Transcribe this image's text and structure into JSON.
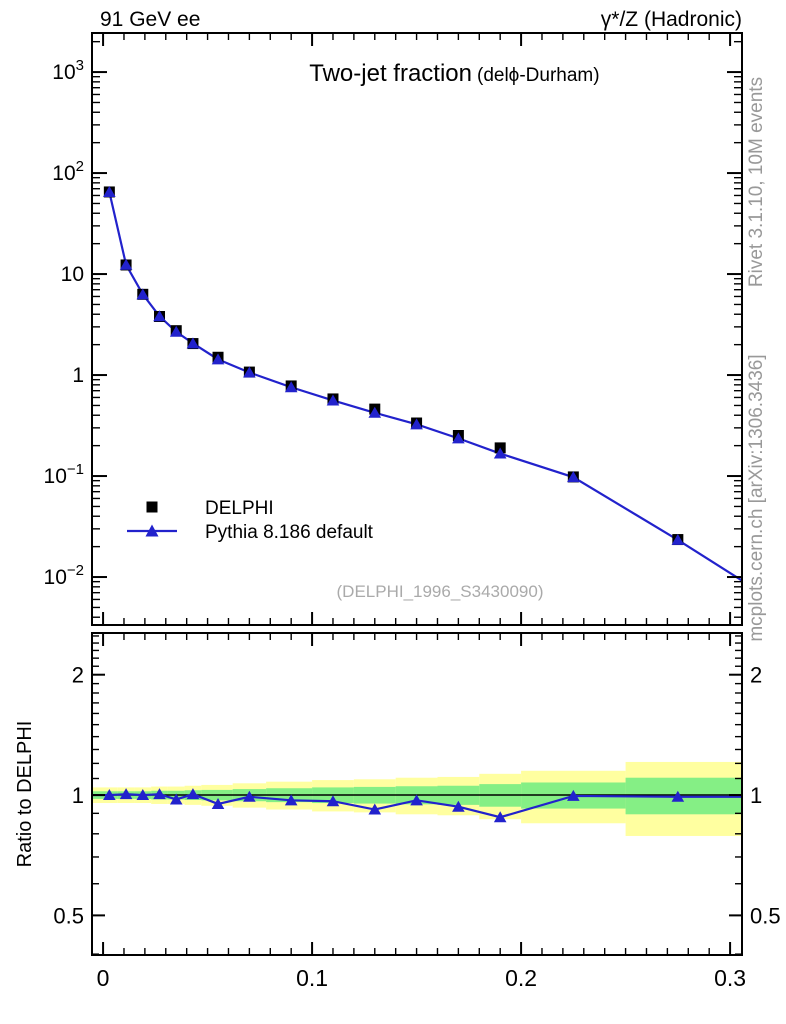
{
  "header": {
    "left": "91 GeV ee",
    "right": "γ*/Z (Hadronic)"
  },
  "title": {
    "main": "Two-jet fraction",
    "sub": "(delϕ-Durham)"
  },
  "watermark": "(DELPHI_1996_S3430090)",
  "side_notes": {
    "top": "Rivet 3.1.10,  10M events",
    "bottom": "mcplots.cern.ch [arXiv:1306.3436]"
  },
  "legend": {
    "items": [
      {
        "label": "DELPHI",
        "marker": "black-square"
      },
      {
        "label": "Pythia 8.186 default",
        "marker": "blue-line-triangle"
      }
    ]
  },
  "colors": {
    "mc_blue": "#2222cc",
    "data_black": "#000000",
    "band_green": "#85ef85",
    "band_yellow": "#ffffa0",
    "gray_note": "#999999",
    "watermark_gray": "#aaaaaa"
  },
  "chart_data": [
    {
      "type": "line",
      "title": "Two-jet fraction (delϕ-Durham)",
      "xlabel": "",
      "ylabel": "",
      "yscale": "log",
      "xlim": [
        -0.0053,
        0.3057
      ],
      "ylim": [
        0.00335,
        2437
      ],
      "x_ticks": {
        "values": [
          0,
          0.1,
          0.2,
          0.3
        ],
        "labels": [
          "0",
          "0.1",
          "0.2",
          "0.3"
        ],
        "minor_step": 0.01
      },
      "y_ticks": {
        "values": [
          1000,
          100,
          10,
          1,
          0.1,
          0.01
        ]
      },
      "x": [
        0.003,
        0.011,
        0.019,
        0.027,
        0.035,
        0.043,
        0.055,
        0.07,
        0.09,
        0.11,
        0.13,
        0.15,
        0.17,
        0.19,
        0.225,
        0.275
      ],
      "series": [
        {
          "name": "DELPHI",
          "marker": "square",
          "color": "#000000",
          "line": false,
          "values": [
            65,
            12.3,
            6.3,
            3.8,
            2.75,
            2.05,
            1.5,
            1.07,
            0.78,
            0.58,
            0.46,
            0.335,
            0.252,
            0.19,
            0.098,
            0.0235
          ]
        },
        {
          "name": "Pythia 8.186 default",
          "marker": "triangle",
          "color": "#2222cc",
          "line": true,
          "values": [
            65.0,
            12.36,
            6.3,
            3.82,
            2.68,
            2.06,
            1.43,
            1.06,
            0.757,
            0.56,
            0.423,
            0.325,
            0.236,
            0.167,
            0.0975,
            0.0233
          ],
          "extend_right": [
            0.32,
            0.006
          ]
        }
      ]
    },
    {
      "type": "ratio",
      "ylabel": "Ratio to DELPHI",
      "yscale": "log",
      "xlim": [
        -0.0053,
        0.3057
      ],
      "ylim": [
        0.398,
        2.543
      ],
      "x_ticks": {
        "values": [
          0,
          0.1,
          0.2,
          0.3
        ],
        "labels": [
          "0",
          "0.1",
          "0.2",
          "0.3"
        ],
        "minor_step": 0.01
      },
      "y_ticks": {
        "values": [
          2,
          1,
          0.5
        ],
        "labels": [
          "2",
          "1",
          "0.5"
        ],
        "minors": [
          0.4,
          0.6,
          0.7,
          0.8,
          0.9,
          1.1,
          1.2,
          1.3,
          1.4,
          1.5,
          1.6,
          1.7,
          1.8,
          1.9,
          2.1,
          2.2,
          2.3,
          2.4,
          2.5
        ]
      },
      "reference_line": 1,
      "x": [
        0.003,
        0.011,
        0.019,
        0.027,
        0.035,
        0.043,
        0.055,
        0.07,
        0.09,
        0.11,
        0.13,
        0.15,
        0.17,
        0.19,
        0.225,
        0.275
      ],
      "values": [
        1.0,
        1.005,
        1.0,
        1.005,
        0.975,
        1.005,
        0.95,
        0.99,
        0.97,
        0.965,
        0.92,
        0.97,
        0.935,
        0.88,
        0.995,
        0.99
      ],
      "extend": {
        "left": [
          -0.0053,
          1.0
        ],
        "right": [
          0.32,
          0.99
        ]
      },
      "bands": {
        "edges": [
          -0.005,
          0.007,
          0.015,
          0.023,
          0.031,
          0.039,
          0.047,
          0.062,
          0.078,
          0.1,
          0.12,
          0.14,
          0.16,
          0.18,
          0.2,
          0.25,
          0.306
        ],
        "green_pm": [
          0.022,
          0.022,
          0.022,
          0.025,
          0.025,
          0.028,
          0.03,
          0.035,
          0.04,
          0.045,
          0.048,
          0.052,
          0.055,
          0.065,
          0.075,
          0.105
        ],
        "yellow_pm": [
          0.045,
          0.045,
          0.045,
          0.05,
          0.05,
          0.055,
          0.06,
          0.07,
          0.08,
          0.09,
          0.095,
          0.105,
          0.11,
          0.13,
          0.15,
          0.21
        ]
      }
    }
  ]
}
